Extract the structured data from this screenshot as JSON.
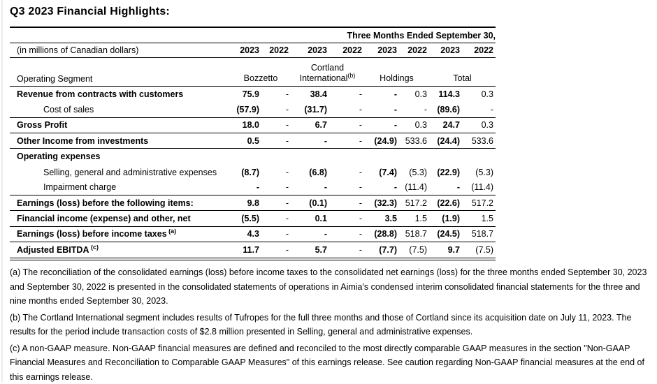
{
  "page": {
    "title": "Q3 2023 Financial Highlights:"
  },
  "table": {
    "period_header": "Three Months Ended September 30,",
    "unit_label": "(in millions of Canadian dollars)",
    "year_headers": [
      "2023",
      "2022",
      "2023",
      "2022",
      "2023",
      "2022",
      "2023",
      "2022"
    ],
    "segment_label": "Operating Segment",
    "segments": [
      {
        "line2": "Bozzetto"
      },
      {
        "line1": "Cortland",
        "line2": "International",
        "sup": "(b)"
      },
      {
        "line2": "Holdings"
      },
      {
        "line2": "Total"
      }
    ],
    "rows": [
      {
        "label": "Revenue from contracts with customers",
        "bold": true,
        "indent": false,
        "rule": false,
        "values": [
          "75.9",
          "-",
          "38.4",
          "-",
          "-",
          "0.3",
          "114.3",
          "0.3"
        ]
      },
      {
        "label": "Cost of sales",
        "bold": false,
        "indent": true,
        "rule": true,
        "values": [
          "(57.9)",
          "-",
          "(31.7)",
          "-",
          "-",
          "-",
          "(89.6)",
          "-"
        ]
      },
      {
        "label": "Gross Profit",
        "bold": true,
        "indent": false,
        "rule": true,
        "values": [
          "18.0",
          "-",
          "6.7",
          "-",
          "-",
          "0.3",
          "24.7",
          "0.3"
        ]
      },
      {
        "label": "Other Income from investments",
        "bold": true,
        "indent": false,
        "rule": true,
        "values": [
          "0.5",
          "-",
          "-",
          "-",
          "(24.9)",
          "533.6",
          "(24.4)",
          "533.6"
        ]
      },
      {
        "label": "Operating expenses",
        "bold": true,
        "indent": false,
        "rule": false,
        "values": [
          "",
          "",
          "",
          "",
          "",
          "",
          "",
          ""
        ]
      },
      {
        "label": "Selling, general and administrative expenses",
        "bold": false,
        "indent": true,
        "rule": false,
        "values": [
          "(8.7)",
          "-",
          "(6.8)",
          "-",
          "(7.4)",
          "(5.3)",
          "(22.9)",
          "(5.3)"
        ]
      },
      {
        "label": "Impairment charge",
        "bold": false,
        "indent": true,
        "rule": true,
        "values": [
          "-",
          "-",
          "-",
          "-",
          "-",
          "(11.4)",
          "-",
          "(11.4)"
        ]
      },
      {
        "label": "Earnings (loss) before the following items:",
        "bold": true,
        "indent": false,
        "rule": true,
        "values": [
          "9.8",
          "-",
          "(0.1)",
          "-",
          "(32.3)",
          "517.2",
          "(22.6)",
          "517.2"
        ]
      },
      {
        "label": "Financial income (expense) and other, net",
        "bold": true,
        "indent": false,
        "rule": true,
        "values": [
          "(5.5)",
          "-",
          "0.1",
          "-",
          "3.5",
          "1.5",
          "(1.9)",
          "1.5"
        ]
      },
      {
        "label": "Earnings (loss) before income taxes",
        "sup": "(a)",
        "bold": true,
        "indent": false,
        "rule": true,
        "values": [
          "4.3",
          "-",
          "-",
          "-",
          "(28.8)",
          "518.7",
          "(24.5)",
          "518.7"
        ]
      },
      {
        "label": "Adjusted EBITDA",
        "sup": "(c)",
        "bold": true,
        "indent": false,
        "rule": false,
        "values": [
          "11.7",
          "-",
          "5.7",
          "-",
          "(7.7)",
          "(7.5)",
          "9.7",
          "(7.5)"
        ]
      }
    ]
  },
  "footnotes": [
    "(a) The reconciliation of the consolidated earnings (loss) before income taxes to the consolidated net earnings (loss) for the three months ended September 30, 2023 and September 30, 2022 is presented in the consolidated statements of operations in Aimia's condensed interim consolidated financial statements for the three and nine months ended September 30, 2023.",
    "(b) The Cortland International segment includes results of Tufropes for the full three months and those of Cortland since its acquisition date on July 11, 2023. The results for the period include transaction costs of $2.8 million presented in Selling, general and administrative expenses.",
    "(c) A non-GAAP measure. Non-GAAP financial measures are defined and reconciled to the most directly comparable GAAP measures in the section \"Non-GAAP Financial Measures and Reconciliation to Comparable GAAP Measures\" of this earnings release. See caution regarding Non-GAAP financial measures at the end of this earnings release."
  ]
}
